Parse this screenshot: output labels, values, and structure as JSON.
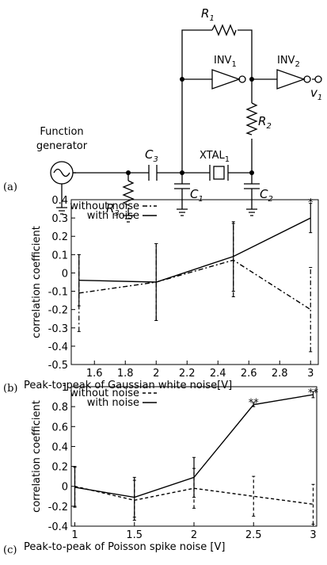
{
  "panels": {
    "a": "(a)"
  },
  "circuit": {
    "source": [
      "Function",
      "generator"
    ],
    "R1": {
      "text": "R",
      "sub": "1"
    },
    "R2": {
      "text": "R",
      "sub": "2"
    },
    "R3": {
      "text": "R",
      "sub": "3"
    },
    "C1": {
      "text": "C",
      "sub": "1"
    },
    "C2": {
      "text": "C",
      "sub": "2"
    },
    "C3": {
      "text": "C",
      "sub": "3"
    },
    "INV1": {
      "text": "INV",
      "sub": "1"
    },
    "INV2": {
      "text": "INV",
      "sub": "2"
    },
    "XTAL1": {
      "text": "XTAL",
      "sub": "1"
    },
    "v1": {
      "text": "v",
      "sub": "1"
    }
  },
  "chart_data": [
    {
      "type": "line",
      "panel_label": "(b)",
      "xlabel": "Peak-to-peak of Gaussian white noise[V]",
      "ylabel": "correlation coefficient",
      "x": [
        1.5,
        2,
        2.5,
        3
      ],
      "xlim": [
        1.45,
        3.05
      ],
      "xticks": [
        1.6,
        1.8,
        2,
        2.2,
        2.4,
        2.6,
        2.8,
        3
      ],
      "ylim": [
        -0.5,
        0.4
      ],
      "yticks": [
        0.4,
        0.3,
        0.2,
        0.1,
        0,
        -0.1,
        -0.2,
        -0.3,
        -0.4,
        -0.5
      ],
      "legend": "upper left",
      "series": [
        {
          "name": "without noise",
          "color": "#000000",
          "dash": "6,3,2,3",
          "values": [
            -0.11,
            -0.05,
            0.07,
            -0.2
          ],
          "errors": [
            0.21,
            0.21,
            0.2,
            0.23
          ]
        },
        {
          "name": "with noise",
          "color": "#000000",
          "dash": "none",
          "values": [
            -0.04,
            -0.05,
            0.09,
            0.3
          ],
          "errors": [
            0.14,
            0.21,
            0.19,
            0.08
          ]
        }
      ],
      "annotations": [
        {
          "x": 3,
          "y": 0.4,
          "text": "*"
        }
      ]
    },
    {
      "type": "line",
      "panel_label": "(c)",
      "xlabel": "Peak-to-peak of Poisson spike noise [V]",
      "ylabel": "correlation coefficient",
      "x": [
        1,
        1.5,
        2,
        2.5,
        3
      ],
      "xlim": [
        0.97,
        3.03
      ],
      "xticks": [
        1,
        1.5,
        2,
        2.5,
        3
      ],
      "ylim": [
        -0.4,
        1
      ],
      "yticks": [
        1,
        0.8,
        0.6,
        0.4,
        0.2,
        0,
        -0.2,
        -0.4
      ],
      "legend": "upper left",
      "series": [
        {
          "name": "without noise",
          "color": "#000000",
          "dash": "4,3",
          "values": [
            0,
            -0.14,
            -0.02,
            -0.1,
            -0.18
          ],
          "errors": [
            0.2,
            0.2,
            0.2,
            0.2,
            0.2
          ]
        },
        {
          "name": "with noise",
          "color": "#000000",
          "dash": "none",
          "values": [
            -0.01,
            -0.11,
            0.09,
            0.82,
            0.92
          ],
          "errors": [
            0.2,
            0.2,
            0.2,
            0.02,
            0.03
          ]
        }
      ],
      "annotations": [
        {
          "x": 2.5,
          "y": 0.87,
          "text": "**"
        },
        {
          "x": 3,
          "y": 0.97,
          "text": "**"
        }
      ]
    }
  ]
}
